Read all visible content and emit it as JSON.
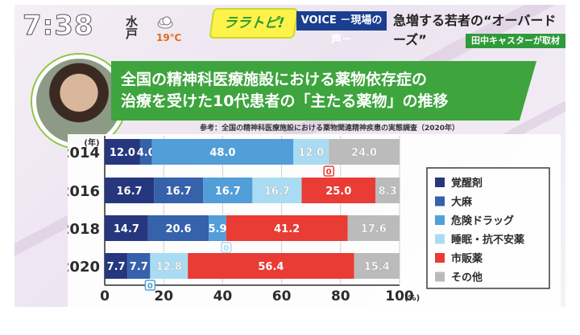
{
  "header": {
    "time": "7:38",
    "location": "水戸",
    "temperature": "19℃",
    "weather_icon": "cloud-icon",
    "program_logo": "ララトピ!",
    "segment_tag": "VOICE －現場の声－",
    "headline": "急増する若者の“オーバードーズ”",
    "reporter_credit": "田中キャスターが取材"
  },
  "title": {
    "line1": "全国の精神科医療施設における薬物依存症の",
    "line2": "治療を受けた10代患者の「主たる薬物」の推移"
  },
  "source_note": "参考：全国の精神科医療施設における薬物関連精神疾患の実態調査（2020年）",
  "chart_data": {
    "type": "bar",
    "orientation": "horizontal",
    "stacked": true,
    "y_axis_label": "(年)",
    "x_unit": "(%)",
    "categories": [
      "2014",
      "2016",
      "2018",
      "2020"
    ],
    "xlim": [
      0,
      100
    ],
    "x_ticks": [
      0,
      20,
      40,
      60,
      80,
      100
    ],
    "tick_labels": [
      "0",
      "20",
      "40",
      "60",
      "80",
      "100"
    ],
    "grid": true,
    "legend_position": "right",
    "series": [
      {
        "name": "覚醒剤",
        "color": "#1c2e78",
        "values": [
          12.0,
          16.7,
          14.7,
          7.7
        ]
      },
      {
        "name": "大麻",
        "color": "#2d5aa8",
        "values": [
          4.0,
          16.7,
          20.6,
          7.7
        ]
      },
      {
        "name": "危険ドラッグ",
        "color": "#4a9bd8",
        "values": [
          48.0,
          16.7,
          5.9,
          0
        ]
      },
      {
        "name": "睡眠・抗不安薬",
        "color": "#a6dcf3",
        "values": [
          12.0,
          16.7,
          0,
          12.8
        ]
      },
      {
        "name": "市販薬",
        "color": "#e8332a",
        "values": [
          0,
          25.0,
          41.2,
          56.4
        ]
      },
      {
        "name": "その他",
        "color": "#b9b9b9",
        "values": [
          24.0,
          8.3,
          17.6,
          15.4
        ]
      }
    ],
    "data_labels": [
      [
        "12.0",
        "4.0",
        "48.0",
        "12.0",
        "0",
        "24.0"
      ],
      [
        "16.7",
        "16.7",
        "16.7",
        "16.7",
        "25.0",
        "8.3"
      ],
      [
        "14.7",
        "20.6",
        "5.9",
        "0",
        "41.2",
        "17.6"
      ],
      [
        "7.7",
        "7.7",
        "0",
        "12.8",
        "56.4",
        "15.4"
      ]
    ]
  }
}
